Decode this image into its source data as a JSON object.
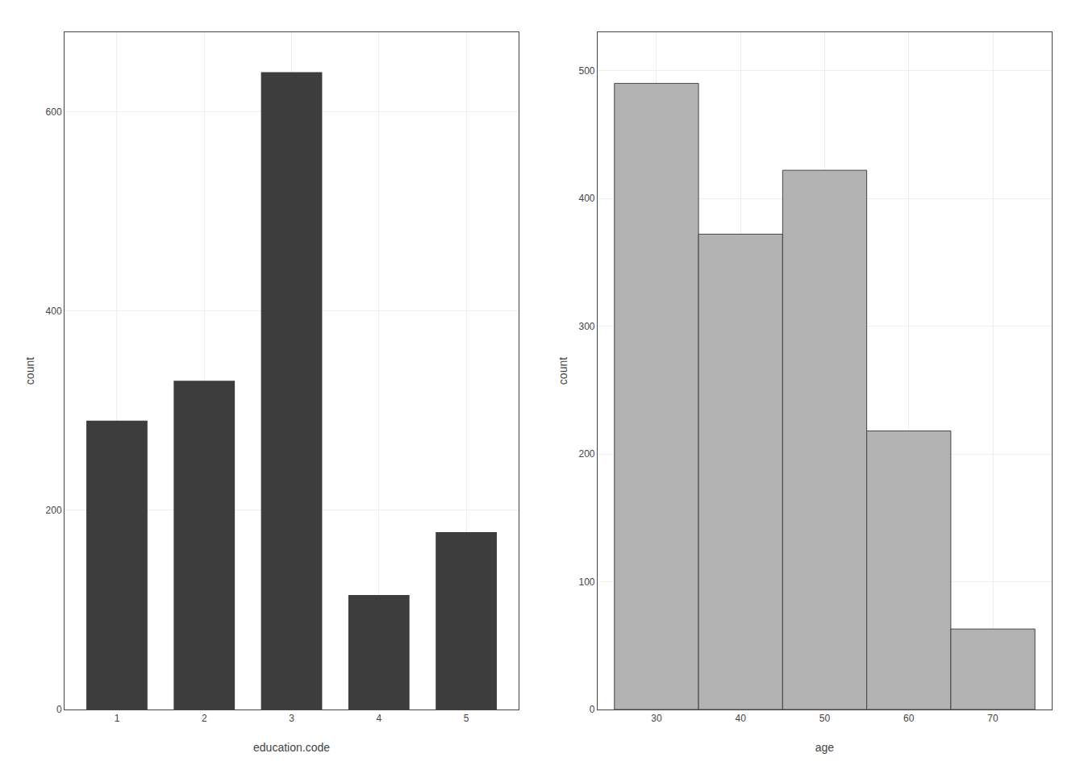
{
  "chart_data": [
    {
      "type": "bar",
      "x": [
        1,
        2,
        3,
        4,
        5
      ],
      "values": [
        290,
        330,
        640,
        115,
        178
      ],
      "color": "#3d3d3d",
      "xlabel": "education.code",
      "ylabel": "count",
      "xlim": [
        0.4,
        5.6
      ],
      "xticks": [
        1,
        2,
        3,
        4,
        5
      ],
      "ylim": [
        0,
        680
      ],
      "yticks": [
        0,
        200,
        400,
        600
      ],
      "grid": true
    },
    {
      "type": "histogram",
      "bins": [
        25,
        35,
        45,
        55,
        65,
        75
      ],
      "values": [
        490,
        372,
        422,
        218,
        63
      ],
      "color": "#b3b3b3",
      "xlabel": "age",
      "ylabel": "count",
      "xlim": [
        23,
        77
      ],
      "xticks": [
        30,
        40,
        50,
        60,
        70
      ],
      "ylim": [
        0,
        530
      ],
      "yticks": [
        0,
        100,
        200,
        300,
        400,
        500
      ],
      "grid": true
    }
  ]
}
